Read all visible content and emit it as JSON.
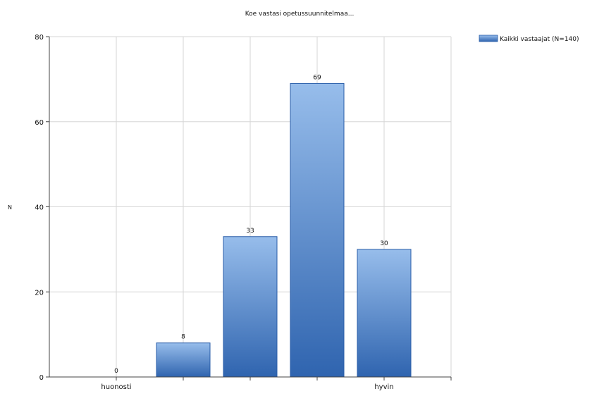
{
  "chart_data": {
    "type": "bar",
    "title": "Koe vastasi opetussuunnitelmaa...",
    "ylabel": "N",
    "xlabel": "",
    "ylim": [
      0,
      80
    ],
    "yticks": [
      0,
      20,
      40,
      60,
      80
    ],
    "categories": [
      "huonosti",
      "",
      "",
      "",
      "hyvin"
    ],
    "series": [
      {
        "name": "Kaikki vastaajat (N=140)",
        "values": [
          0,
          8,
          33,
          69,
          30
        ]
      }
    ],
    "grid": true,
    "legend": "top-right",
    "colors": {
      "bar_top": "#97bdeb",
      "bar_bottom": "#2f64af",
      "bar_edge": "#2a5da8"
    }
  }
}
